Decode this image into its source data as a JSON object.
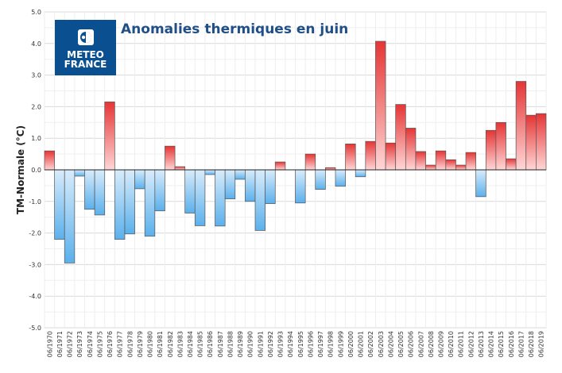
{
  "logo": {
    "line1": "METEO",
    "line2": "FRANCE",
    "bg": "#0a4f8f"
  },
  "chart_data": {
    "type": "bar",
    "title": "Anomalies thermiques en juin",
    "ylabel": "TM-Normale (°C)",
    "xlabel": "",
    "ylim": [
      -5.0,
      5.0
    ],
    "yticks": [
      "5.0",
      "4.0",
      "3.0",
      "2.0",
      "1.0",
      "0.0",
      "-1.0",
      "-2.0",
      "-3.0",
      "-4.0",
      "-5.0"
    ],
    "ytick_values": [
      5,
      4,
      3,
      2,
      1,
      0,
      -1,
      -2,
      -3,
      -4,
      -5
    ],
    "grid": true,
    "legend": "none",
    "colors": {
      "positive_top": "#e53535",
      "positive_bottom": "#ffd6d6",
      "negative_top": "#d8ecfb",
      "negative_bottom": "#5bb0ec",
      "bar_stroke": "#555555",
      "title": "#1f4f86"
    },
    "categories": [
      "06/1970",
      "06/1971",
      "06/1972",
      "06/1973",
      "06/1974",
      "06/1975",
      "06/1976",
      "06/1977",
      "06/1978",
      "06/1979",
      "06/1980",
      "06/1981",
      "06/1982",
      "06/1983",
      "06/1984",
      "06/1985",
      "06/1986",
      "06/1987",
      "06/1988",
      "06/1989",
      "06/1990",
      "06/1991",
      "06/1992",
      "06/1993",
      "06/1994",
      "06/1995",
      "06/1996",
      "06/1997",
      "06/1998",
      "06/1999",
      "06/2000",
      "06/2001",
      "06/2002",
      "06/2003",
      "06/2004",
      "06/2005",
      "06/2006",
      "06/2007",
      "06/2008",
      "06/2009",
      "06/2010",
      "06/2011",
      "06/2012",
      "06/2013",
      "06/2014",
      "06/2015",
      "06/2016",
      "06/2017",
      "06/2018",
      "06/2019"
    ],
    "values": [
      0.6,
      -2.2,
      -2.95,
      -0.2,
      -1.25,
      -1.43,
      2.15,
      -2.2,
      -2.03,
      -0.6,
      -2.1,
      -1.3,
      0.75,
      0.1,
      -1.37,
      -1.77,
      -0.15,
      -1.78,
      -0.92,
      -0.3,
      -1.0,
      -1.92,
      -1.07,
      0.25,
      0.0,
      -1.05,
      0.5,
      -0.62,
      0.07,
      -0.52,
      0.82,
      -0.22,
      0.9,
      4.07,
      0.85,
      2.07,
      1.32,
      0.58,
      0.15,
      0.6,
      0.32,
      0.15,
      0.55,
      -0.85,
      1.25,
      1.5,
      0.35,
      2.8,
      1.73,
      1.78
    ]
  }
}
